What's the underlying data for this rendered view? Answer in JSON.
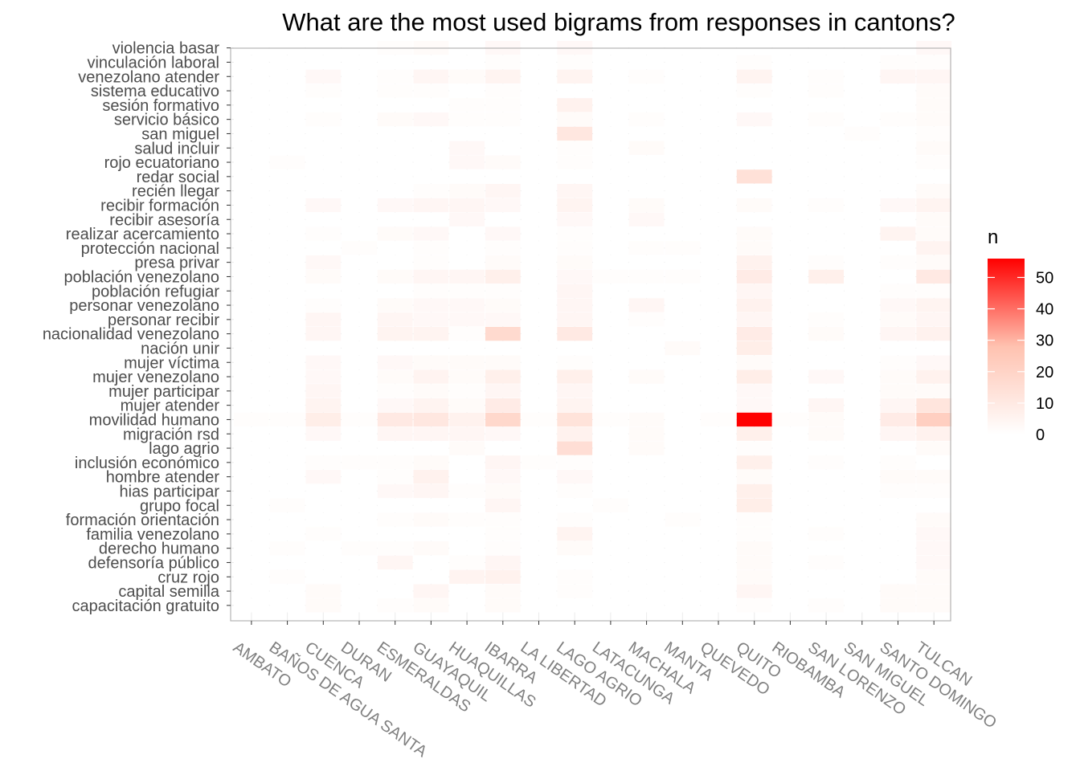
{
  "chart_data": {
    "type": "heatmap",
    "title": "What are the most used bigrams from responses in cantons?",
    "xlabel": "",
    "ylabel": "",
    "x_categories": [
      "AMBATO",
      "BAÑOS DE AGUA SANTA",
      "CUENCA",
      "DURAN",
      "ESMERALDAS",
      "GUAYAQUIL",
      "HUAQUILLAS",
      "IBARRA",
      "LA LIBERTAD",
      "LAGO AGRIO",
      "LATACUNGA",
      "MACHALA",
      "MANTA",
      "QUEVEDO",
      "QUITO",
      "RIOBAMBA",
      "SAN LORENZO",
      "SAN MIGUEL",
      "SANTO DOMINGO",
      "TULCAN"
    ],
    "y_categories": [
      "capacitación gratuito",
      "capital semilla",
      "cruz rojo",
      "defensoría público",
      "derecho humano",
      "familia venezolano",
      "formación orientación",
      "grupo focal",
      "hias participar",
      "hombre atender",
      "inclusión económico",
      "lago agrio",
      "migración rsd",
      "movilidad humano",
      "mujer atender",
      "mujer participar",
      "mujer venezolano",
      "mujer víctima",
      "nación unir",
      "nacionalidad venezolano",
      "personar recibir",
      "personar venezolano",
      "población refugiar",
      "población venezolano",
      "presa privar",
      "protección nacional",
      "realizar acercamiento",
      "recibir asesoría",
      "recibir formación",
      "recién llegar",
      "redar social",
      "rojo ecuatoriano",
      "salud incluir",
      "san miguel",
      "servicio básico",
      "sesión formativo",
      "sistema educativo",
      "venezolano atender",
      "vinculación laboral",
      "violencia basar"
    ],
    "values": [
      [
        0,
        0,
        2,
        0,
        1,
        2,
        0,
        2,
        0,
        0,
        0,
        0,
        0,
        0,
        1,
        0,
        1,
        0,
        2,
        2
      ],
      [
        0,
        0,
        2,
        0,
        0,
        4,
        0,
        2,
        0,
        1,
        0,
        0,
        0,
        0,
        4,
        0,
        0,
        0,
        2,
        2
      ],
      [
        0,
        1,
        0,
        0,
        0,
        0,
        5,
        6,
        0,
        1,
        0,
        0,
        0,
        0,
        2,
        0,
        0,
        0,
        0,
        2
      ],
      [
        0,
        0,
        0,
        0,
        4,
        0,
        1,
        4,
        0,
        0,
        0,
        0,
        0,
        0,
        2,
        0,
        1,
        0,
        0,
        3
      ],
      [
        0,
        1,
        0,
        1,
        1,
        2,
        0,
        1,
        0,
        2,
        0,
        0,
        0,
        0,
        2,
        0,
        0,
        0,
        0,
        3
      ],
      [
        0,
        0,
        1,
        0,
        0,
        0,
        0,
        1,
        0,
        5,
        0,
        0,
        0,
        0,
        1,
        0,
        1,
        0,
        0,
        3
      ],
      [
        0,
        0,
        0,
        0,
        1,
        2,
        1,
        1,
        0,
        1,
        0,
        0,
        1,
        0,
        1,
        0,
        0,
        0,
        0,
        2
      ],
      [
        0,
        1,
        0,
        0,
        0,
        0,
        0,
        4,
        0,
        0,
        1,
        0,
        0,
        0,
        8,
        0,
        0,
        0,
        0,
        0
      ],
      [
        0,
        0,
        0,
        0,
        3,
        4,
        1,
        2,
        0,
        1,
        0,
        0,
        0,
        0,
        7,
        0,
        0,
        0,
        1,
        1
      ],
      [
        0,
        0,
        3,
        0,
        1,
        6,
        0,
        3,
        0,
        3,
        0,
        0,
        0,
        0,
        2,
        0,
        0,
        0,
        2,
        2
      ],
      [
        0,
        0,
        1,
        1,
        1,
        2,
        0,
        4,
        1,
        1,
        0,
        0,
        0,
        0,
        7,
        0,
        1,
        0,
        1,
        0
      ],
      [
        0,
        0,
        0,
        0,
        0,
        0,
        2,
        0,
        0,
        15,
        0,
        2,
        0,
        0,
        1,
        0,
        0,
        0,
        0,
        2
      ],
      [
        0,
        0,
        3,
        0,
        4,
        4,
        4,
        3,
        0,
        6,
        0,
        2,
        0,
        0,
        7,
        0,
        2,
        0,
        4,
        6
      ],
      [
        1,
        1,
        8,
        1,
        10,
        11,
        6,
        18,
        1,
        13,
        1,
        2,
        0,
        1,
        56,
        1,
        2,
        0,
        9,
        22
      ],
      [
        0,
        0,
        5,
        0,
        3,
        5,
        2,
        9,
        0,
        5,
        0,
        0,
        0,
        0,
        3,
        0,
        4,
        0,
        4,
        12
      ],
      [
        0,
        0,
        4,
        0,
        1,
        2,
        1,
        4,
        0,
        4,
        0,
        0,
        0,
        0,
        3,
        0,
        0,
        0,
        2,
        2
      ],
      [
        0,
        0,
        3,
        0,
        2,
        5,
        2,
        7,
        0,
        7,
        0,
        2,
        0,
        0,
        8,
        0,
        3,
        0,
        2,
        6
      ],
      [
        0,
        0,
        3,
        0,
        3,
        2,
        2,
        2,
        0,
        1,
        0,
        0,
        0,
        0,
        2,
        0,
        0,
        0,
        1,
        3
      ],
      [
        0,
        0,
        0,
        0,
        0,
        0,
        0,
        0,
        0,
        0,
        0,
        0,
        2,
        0,
        8,
        0,
        0,
        0,
        0,
        0
      ],
      [
        0,
        0,
        4,
        0,
        5,
        5,
        1,
        17,
        0,
        10,
        0,
        0,
        0,
        0,
        9,
        0,
        2,
        0,
        4,
        6
      ],
      [
        0,
        0,
        4,
        0,
        4,
        3,
        3,
        3,
        0,
        4,
        0,
        1,
        0,
        0,
        4,
        0,
        1,
        0,
        2,
        4
      ],
      [
        0,
        0,
        1,
        0,
        2,
        3,
        3,
        2,
        0,
        4,
        0,
        4,
        0,
        0,
        6,
        0,
        0,
        0,
        3,
        5
      ],
      [
        0,
        0,
        0,
        0,
        0,
        1,
        1,
        1,
        0,
        4,
        0,
        0,
        0,
        0,
        4,
        0,
        0,
        0,
        1,
        1
      ],
      [
        0,
        0,
        2,
        0,
        2,
        4,
        4,
        7,
        0,
        3,
        1,
        1,
        1,
        0,
        9,
        0,
        7,
        0,
        0,
        10
      ],
      [
        0,
        0,
        3,
        0,
        0,
        1,
        0,
        2,
        0,
        2,
        0,
        0,
        0,
        0,
        6,
        0,
        1,
        0,
        1,
        2
      ],
      [
        0,
        0,
        0,
        1,
        0,
        1,
        0,
        1,
        0,
        1,
        0,
        1,
        1,
        0,
        2,
        0,
        0,
        0,
        0,
        5
      ],
      [
        0,
        0,
        1,
        0,
        2,
        3,
        0,
        3,
        0,
        1,
        0,
        0,
        0,
        0,
        2,
        0,
        0,
        0,
        5,
        2
      ],
      [
        0,
        0,
        0,
        0,
        0,
        0,
        3,
        0,
        0,
        3,
        0,
        3,
        0,
        0,
        0,
        0,
        0,
        0,
        0,
        2
      ],
      [
        0,
        0,
        3,
        0,
        3,
        4,
        4,
        3,
        0,
        5,
        0,
        2,
        0,
        0,
        2,
        0,
        1,
        0,
        3,
        5
      ],
      [
        0,
        0,
        0,
        0,
        0,
        1,
        2,
        4,
        0,
        4,
        0,
        0,
        0,
        0,
        0,
        0,
        0,
        0,
        0,
        2
      ],
      [
        0,
        0,
        0,
        0,
        0,
        0,
        0,
        0,
        0,
        0,
        0,
        0,
        0,
        0,
        14,
        0,
        0,
        0,
        0,
        0
      ],
      [
        0,
        1,
        0,
        0,
        0,
        0,
        3,
        2,
        0,
        1,
        0,
        0,
        0,
        0,
        0,
        0,
        0,
        0,
        0,
        1
      ],
      [
        0,
        0,
        0,
        0,
        0,
        0,
        3,
        0,
        0,
        1,
        0,
        2,
        0,
        0,
        0,
        0,
        0,
        0,
        0,
        2
      ],
      [
        0,
        0,
        0,
        0,
        0,
        0,
        0,
        0,
        0,
        11,
        0,
        0,
        0,
        0,
        0,
        0,
        0,
        1,
        0,
        1
      ],
      [
        0,
        0,
        1,
        0,
        2,
        3,
        1,
        1,
        0,
        2,
        0,
        1,
        0,
        0,
        3,
        0,
        1,
        0,
        1,
        2
      ],
      [
        0,
        0,
        0,
        0,
        0,
        0,
        1,
        1,
        0,
        6,
        0,
        0,
        0,
        0,
        0,
        0,
        0,
        0,
        0,
        2
      ],
      [
        0,
        0,
        1,
        0,
        1,
        1,
        0,
        1,
        0,
        0,
        0,
        0,
        0,
        0,
        1,
        0,
        1,
        0,
        0,
        2
      ],
      [
        0,
        0,
        3,
        0,
        1,
        4,
        2,
        5,
        0,
        5,
        0,
        1,
        0,
        0,
        5,
        0,
        1,
        0,
        4,
        4
      ],
      [
        0,
        0,
        0,
        0,
        0,
        0,
        0,
        1,
        0,
        1,
        0,
        0,
        0,
        0,
        1,
        0,
        0,
        0,
        1,
        1
      ],
      [
        0,
        0,
        0,
        0,
        1,
        2,
        0,
        3,
        0,
        3,
        0,
        0,
        0,
        0,
        0,
        0,
        0,
        0,
        0,
        3
      ]
    ],
    "color_scale": {
      "low": "#ffffff",
      "high": "#ff0000",
      "min": 0,
      "max": 56
    },
    "legend": {
      "title": "n",
      "ticks": [
        0,
        10,
        20,
        30,
        40,
        50
      ],
      "placement": "right"
    },
    "grid": true,
    "panel_border": "#b3b3b3",
    "x_tick_color": "#808080",
    "y_tick_color": "#4d4d4d"
  }
}
